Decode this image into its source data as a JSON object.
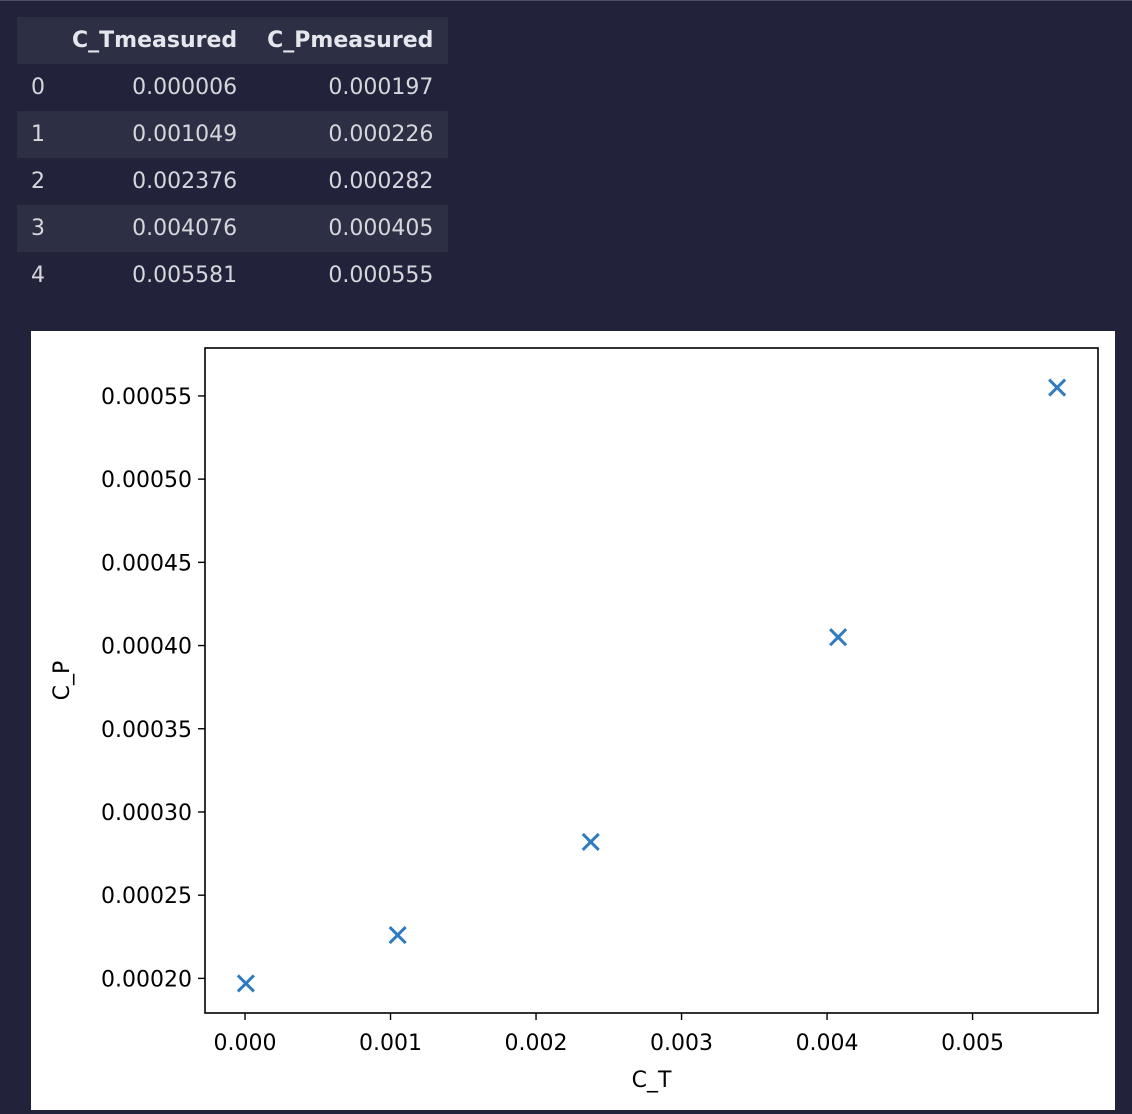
{
  "dataframe": {
    "columns": [
      "C_Tmeasured",
      "C_Pmeasured"
    ],
    "rows": [
      {
        "index": "0",
        "C_Tmeasured": "0.000006",
        "C_Pmeasured": "0.000197"
      },
      {
        "index": "1",
        "C_Tmeasured": "0.001049",
        "C_Pmeasured": "0.000226"
      },
      {
        "index": "2",
        "C_Tmeasured": "0.002376",
        "C_Pmeasured": "0.000282"
      },
      {
        "index": "3",
        "C_Tmeasured": "0.004076",
        "C_Pmeasured": "0.000405"
      },
      {
        "index": "4",
        "C_Tmeasured": "0.005581",
        "C_Pmeasured": "0.000555"
      }
    ]
  },
  "chart_data": {
    "type": "scatter",
    "marker": "x",
    "marker_color": "#2f7bbf",
    "xlabel": "C_T",
    "ylabel": "C_P",
    "xlim": [
      -0.000275,
      0.005862
    ],
    "ylim": [
      0.0001792,
      0.0005788
    ],
    "xticks": [
      0.0,
      0.001,
      0.002,
      0.003,
      0.004,
      0.005
    ],
    "xtick_labels": [
      "0.000",
      "0.001",
      "0.002",
      "0.003",
      "0.004",
      "0.005"
    ],
    "yticks": [
      0.0002,
      0.00025,
      0.0003,
      0.00035,
      0.0004,
      0.00045,
      0.0005,
      0.00055
    ],
    "ytick_labels": [
      "0.00020",
      "0.00025",
      "0.00030",
      "0.00035",
      "0.00040",
      "0.00045",
      "0.00050",
      "0.00055"
    ],
    "x": [
      6e-06,
      0.001049,
      0.002376,
      0.004076,
      0.005581
    ],
    "y": [
      0.000197,
      0.000226,
      0.000282,
      0.000405,
      0.000555
    ],
    "grid": false
  }
}
